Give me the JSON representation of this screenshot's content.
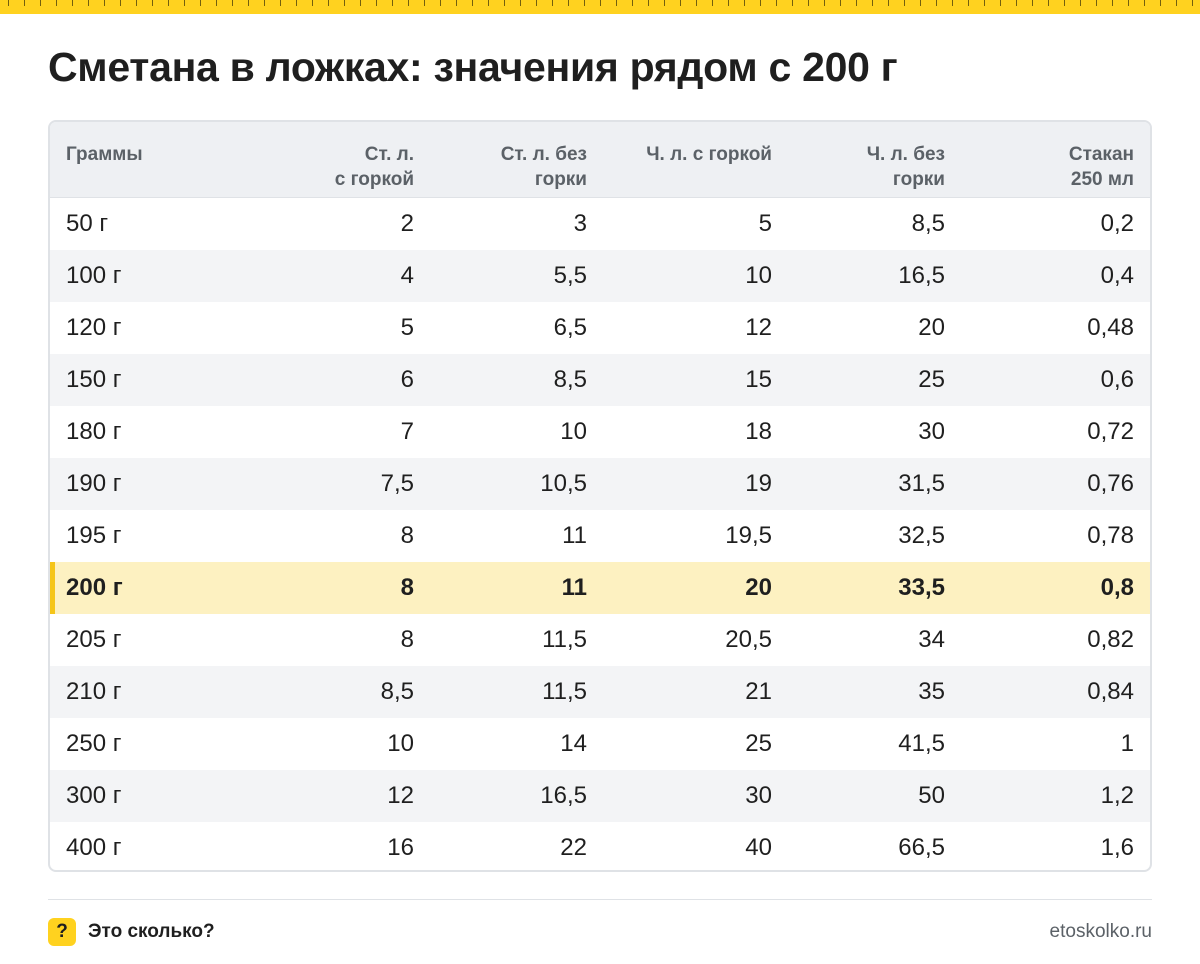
{
  "title": "Сметана в ложках: значения рядом с 200 г",
  "colors": {
    "accent": "#ffd21f",
    "highlight_row": "#fdf1c1",
    "header_bg": "#eef0f3",
    "text": "#1f1f1f",
    "muted": "#5b6167"
  },
  "table": {
    "headers": [
      "Граммы",
      "Ст. л.\nс горкой",
      "Ст. л. без\nгорки",
      "Ч. л. с горкой",
      "Ч. л. без\nгорки",
      "Стакан\n250 мл"
    ],
    "highlighted_row_index": 7,
    "rows": [
      [
        "50 г",
        "2",
        "3",
        "5",
        "8,5",
        "0,2"
      ],
      [
        "100 г",
        "4",
        "5,5",
        "10",
        "16,5",
        "0,4"
      ],
      [
        "120 г",
        "5",
        "6,5",
        "12",
        "20",
        "0,48"
      ],
      [
        "150 г",
        "6",
        "8,5",
        "15",
        "25",
        "0,6"
      ],
      [
        "180 г",
        "7",
        "10",
        "18",
        "30",
        "0,72"
      ],
      [
        "190 г",
        "7,5",
        "10,5",
        "19",
        "31,5",
        "0,76"
      ],
      [
        "195 г",
        "8",
        "11",
        "19,5",
        "32,5",
        "0,78"
      ],
      [
        "200 г",
        "8",
        "11",
        "20",
        "33,5",
        "0,8"
      ],
      [
        "205 г",
        "8",
        "11,5",
        "20,5",
        "34",
        "0,82"
      ],
      [
        "210 г",
        "8,5",
        "11,5",
        "21",
        "35",
        "0,84"
      ],
      [
        "250 г",
        "10",
        "14",
        "25",
        "41,5",
        "1"
      ],
      [
        "300 г",
        "12",
        "16,5",
        "30",
        "50",
        "1,2"
      ],
      [
        "400 г",
        "16",
        "22",
        "40",
        "66,5",
        "1,6"
      ]
    ]
  },
  "footer": {
    "logo_glyph": "?",
    "brand": "Это сколько?",
    "site": "etoskolko.ru"
  }
}
